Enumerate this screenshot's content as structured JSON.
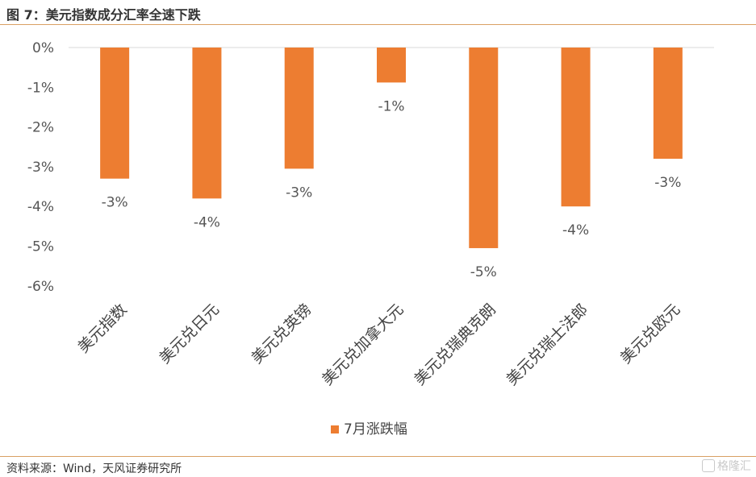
{
  "figure": {
    "title": "图 7：美元指数成分汇率全速下跌",
    "source": "资料来源：Wind，天风证券研究所",
    "watermark": "格隆汇"
  },
  "chart_data": {
    "type": "bar",
    "categories": [
      "美元指数",
      "美元兑日元",
      "美元兑英镑",
      "美元兑加拿大元",
      "美元兑瑞典克朗",
      "美元兑瑞士法郎",
      "美元兑欧元"
    ],
    "series": [
      {
        "name": "7月涨跌幅",
        "values": [
          -3.3,
          -3.8,
          -3.05,
          -0.88,
          -5.05,
          -4.0,
          -2.8
        ],
        "labels": [
          "-3%",
          "-4%",
          "-3%",
          "-1%",
          "-5%",
          "-4%",
          "-3%"
        ]
      }
    ],
    "yticks": [
      0,
      -1,
      -2,
      -3,
      -4,
      -5,
      -6
    ],
    "ytick_labels": [
      "0%",
      "-1%",
      "-2%",
      "-3%",
      "-4%",
      "-5%",
      "-6%"
    ],
    "ylim": [
      -6,
      0
    ],
    "xlabel": "",
    "ylabel": "",
    "grid": false,
    "legend": "bottom-center",
    "bar_color": "#ed7d31"
  }
}
